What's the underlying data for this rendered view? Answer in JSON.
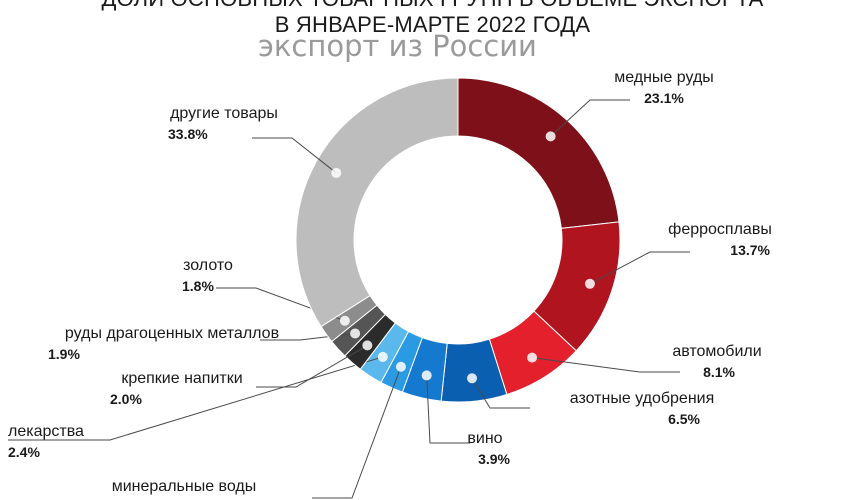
{
  "chart_data": {
    "type": "pie",
    "title": "ДОЛИ ОСНОВНЫХ ТОВАРНЫХ ГРУПП В ОБЪЕМЕ ЭКСПОРТА",
    "subtitle": "В ЯНВАРЕ-МАРТЕ 2022 ГОДА",
    "watermark": "экспорт из России",
    "slices": [
      {
        "label": "медные руды",
        "value_label": "23.1%",
        "value": 23.1,
        "color": "#7d1019"
      },
      {
        "label": "ферросплавы",
        "value_label": "13.7%",
        "value": 13.7,
        "color": "#b0141f"
      },
      {
        "label": "автомобили",
        "value_label": "8.1%",
        "value": 8.1,
        "color": "#e3202c"
      },
      {
        "label": "азотные удобрения",
        "value_label": "6.5%",
        "value": 6.5,
        "color": "#0a5fb0"
      },
      {
        "label": "вино",
        "value_label": "3.9%",
        "value": 3.9,
        "color": "#1479cf"
      },
      {
        "label": "минеральные воды",
        "value_label": "",
        "value": 2.3,
        "color": "#2a9ae2"
      },
      {
        "label": "лекарства",
        "value_label": "2.4%",
        "value": 2.4,
        "color": "#5bb8ec"
      },
      {
        "label": "крепкие напитки",
        "value_label": "2.0%",
        "value": 2.0,
        "color": "#2b2b2b"
      },
      {
        "label": "руды драгоценных металлов",
        "value_label": "1.9%",
        "value": 1.9,
        "color": "#555555"
      },
      {
        "label": "золото",
        "value_label": "1.8%",
        "value": 1.8,
        "color": "#8c8c8c"
      },
      {
        "label": "другие товары",
        "value_label": "33.8%",
        "value": 33.8,
        "color": "#bdbdbd"
      }
    ]
  }
}
